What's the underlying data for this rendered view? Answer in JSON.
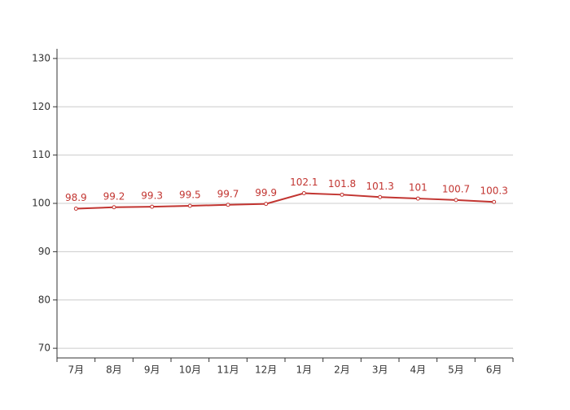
{
  "chart_data": {
    "type": "line",
    "categories": [
      "7月",
      "8月",
      "9月",
      "10月",
      "11月",
      "12月",
      "1月",
      "2月",
      "3月",
      "4月",
      "5月",
      "6月"
    ],
    "series": [
      {
        "color": "#c23531",
        "values": [
          98.9,
          99.2,
          99.3,
          99.5,
          99.7,
          99.9,
          102.1,
          101.8,
          101.3,
          101,
          100.7,
          100.3
        ]
      }
    ],
    "ylim": [
      68,
      132
    ],
    "yticks": [
      70,
      80,
      90,
      100,
      110,
      120,
      130
    ],
    "grid": true
  }
}
